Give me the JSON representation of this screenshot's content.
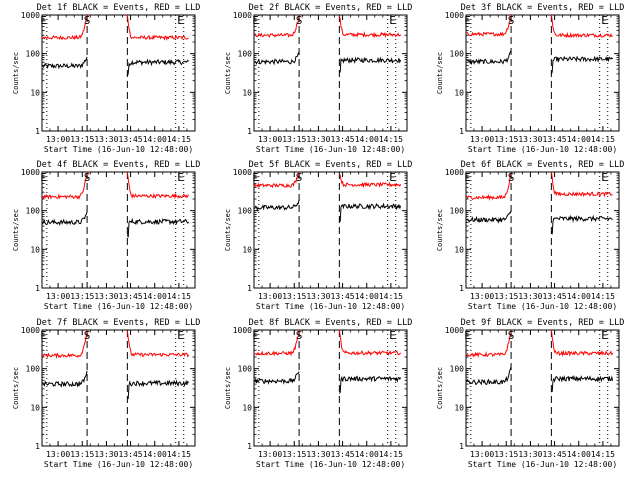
{
  "figure": {
    "background": "#ffffff",
    "axis_color": "#000000",
    "events_color": "#000000",
    "lld_color": "#ff0000"
  },
  "chart_data": [
    {
      "type": "line",
      "title": "Det 1f BLACK = Events, RED = LLD",
      "xlabel": "Start Time (16-Jun-10 12:48:00)",
      "ylabel": "Counts/sec",
      "yscale": "log",
      "ylim": [
        1,
        1000
      ],
      "xlim": [
        "12:50",
        "14:25"
      ],
      "xticks": [
        "13:00",
        "13:15",
        "13:30",
        "13:45",
        "14:00",
        "14:15"
      ],
      "yticks": [
        "1",
        "10",
        "100",
        "1000"
      ],
      "grid": false,
      "markers": [
        {
          "label": "E",
          "time": "12:51"
        },
        {
          "label": "S",
          "time": "13:18"
        },
        {
          "label": "E",
          "time": "14:16"
        }
      ],
      "dashed_lines": [
        "13:18",
        "13:43"
      ],
      "dotted_lines": [
        "12:53",
        "14:13",
        "14:18"
      ],
      "gap": [
        "13:18",
        "13:43"
      ],
      "series": [
        {
          "name": "Events",
          "color": "#000000",
          "level_before": 48,
          "rise_to": 85,
          "level_after": 60
        },
        {
          "name": "LLD",
          "color": "#ff0000",
          "level_before": 260,
          "rise_to": 1000,
          "level_after": 260
        }
      ]
    },
    {
      "type": "line",
      "title": "Det 2f BLACK = Events, RED = LLD",
      "xlabel": "Start Time (16-Jun-10 12:48:00)",
      "ylabel": "Counts/sec",
      "yscale": "log",
      "ylim": [
        1,
        1000
      ],
      "xlim": [
        "12:50",
        "14:25"
      ],
      "xticks": [
        "13:00",
        "13:15",
        "13:30",
        "13:45",
        "14:00",
        "14:15"
      ],
      "yticks": [
        "1",
        "10",
        "100",
        "1000"
      ],
      "grid": false,
      "markers": [
        {
          "label": "E",
          "time": "12:51"
        },
        {
          "label": "S",
          "time": "13:18"
        },
        {
          "label": "E",
          "time": "14:16"
        }
      ],
      "dashed_lines": [
        "13:18",
        "13:43"
      ],
      "dotted_lines": [
        "12:53",
        "14:13",
        "14:18"
      ],
      "gap": [
        "13:18",
        "13:43"
      ],
      "series": [
        {
          "name": "Events",
          "color": "#000000",
          "level_before": 62,
          "rise_to": 100,
          "level_after": 68
        },
        {
          "name": "LLD",
          "color": "#ff0000",
          "level_before": 300,
          "rise_to": 1000,
          "level_after": 310
        }
      ]
    },
    {
      "type": "line",
      "title": "Det 3f BLACK = Events, RED = LLD",
      "xlabel": "Start Time (16-Jun-10 12:48:00)",
      "ylabel": "Counts/sec",
      "yscale": "log",
      "ylim": [
        1,
        1000
      ],
      "xlim": [
        "12:50",
        "14:25"
      ],
      "xticks": [
        "13:00",
        "13:15",
        "13:30",
        "13:45",
        "14:00",
        "14:15"
      ],
      "yticks": [
        "1",
        "10",
        "100",
        "1000"
      ],
      "grid": false,
      "markers": [
        {
          "label": "E",
          "time": "12:51"
        },
        {
          "label": "S",
          "time": "13:18"
        },
        {
          "label": "E",
          "time": "14:16"
        }
      ],
      "dashed_lines": [
        "13:18",
        "13:43"
      ],
      "dotted_lines": [
        "12:53",
        "14:13",
        "14:18"
      ],
      "gap": [
        "13:18",
        "13:43"
      ],
      "series": [
        {
          "name": "Events",
          "color": "#000000",
          "level_before": 62,
          "rise_to": 110,
          "level_after": 72
        },
        {
          "name": "LLD",
          "color": "#ff0000",
          "level_before": 320,
          "rise_to": 1000,
          "level_after": 300
        }
      ]
    },
    {
      "type": "line",
      "title": "Det 4f BLACK = Events, RED = LLD",
      "xlabel": "Start Time (16-Jun-10 12:48:00)",
      "ylabel": "Counts/sec",
      "yscale": "log",
      "ylim": [
        1,
        1000
      ],
      "xlim": [
        "12:50",
        "14:25"
      ],
      "xticks": [
        "13:00",
        "13:15",
        "13:30",
        "13:45",
        "14:00",
        "14:15"
      ],
      "yticks": [
        "1",
        "10",
        "100",
        "1000"
      ],
      "grid": false,
      "markers": [
        {
          "label": "E",
          "time": "12:51"
        },
        {
          "label": "S",
          "time": "13:18"
        },
        {
          "label": "E",
          "time": "14:16"
        }
      ],
      "dashed_lines": [
        "13:18",
        "13:43"
      ],
      "dotted_lines": [
        "12:53",
        "14:13",
        "14:18"
      ],
      "gap": [
        "13:18",
        "13:43"
      ],
      "series": [
        {
          "name": "Events",
          "color": "#000000",
          "level_before": 50,
          "rise_to": 90,
          "level_after": 52
        },
        {
          "name": "LLD",
          "color": "#ff0000",
          "level_before": 230,
          "rise_to": 1000,
          "level_after": 240
        }
      ]
    },
    {
      "type": "line",
      "title": "Det 5f BLACK = Events, RED = LLD",
      "xlabel": "Start Time (16-Jun-10 12:48:00)",
      "ylabel": "Counts/sec",
      "yscale": "log",
      "ylim": [
        1,
        1000
      ],
      "xlim": [
        "12:50",
        "14:25"
      ],
      "xticks": [
        "13:00",
        "13:15",
        "13:30",
        "13:45",
        "14:00",
        "14:15"
      ],
      "yticks": [
        "1",
        "10",
        "100",
        "1000"
      ],
      "grid": false,
      "markers": [
        {
          "label": "E",
          "time": "12:51"
        },
        {
          "label": "S",
          "time": "13:18"
        },
        {
          "label": "E",
          "time": "14:16"
        }
      ],
      "dashed_lines": [
        "13:18",
        "13:43"
      ],
      "dotted_lines": [
        "12:53",
        "14:13",
        "14:18"
      ],
      "gap": [
        "13:18",
        "13:43"
      ],
      "series": [
        {
          "name": "Events",
          "color": "#000000",
          "level_before": 120,
          "rise_to": 180,
          "level_after": 130
        },
        {
          "name": "LLD",
          "color": "#ff0000",
          "level_before": 450,
          "rise_to": 1000,
          "level_after": 470
        }
      ]
    },
    {
      "type": "line",
      "title": "Det 6f BLACK = Events, RED = LLD",
      "xlabel": "Start Time (16-Jun-10 12:48:00)",
      "ylabel": "Counts/sec",
      "yscale": "log",
      "ylim": [
        1,
        1000
      ],
      "xlim": [
        "12:50",
        "14:25"
      ],
      "xticks": [
        "13:00",
        "13:15",
        "13:30",
        "13:45",
        "14:00",
        "14:15"
      ],
      "yticks": [
        "1",
        "10",
        "100",
        "1000"
      ],
      "grid": false,
      "markers": [
        {
          "label": "E",
          "time": "12:51"
        },
        {
          "label": "S",
          "time": "13:18"
        },
        {
          "label": "E",
          "time": "14:16"
        }
      ],
      "dashed_lines": [
        "13:18",
        "13:43"
      ],
      "dotted_lines": [
        "12:53",
        "14:13",
        "14:18"
      ],
      "gap": [
        "13:18",
        "13:43"
      ],
      "series": [
        {
          "name": "Events",
          "color": "#000000",
          "level_before": 58,
          "rise_to": 100,
          "level_after": 62
        },
        {
          "name": "LLD",
          "color": "#ff0000",
          "level_before": 220,
          "rise_to": 1000,
          "level_after": 270
        }
      ]
    },
    {
      "type": "line",
      "title": "Det 7f BLACK = Events, RED = LLD",
      "xlabel": "Start Time (16-Jun-10 12:48:00)",
      "ylabel": "Counts/sec",
      "yscale": "log",
      "ylim": [
        1,
        1000
      ],
      "xlim": [
        "12:50",
        "14:25"
      ],
      "xticks": [
        "13:00",
        "13:15",
        "13:30",
        "13:45",
        "14:00",
        "14:15"
      ],
      "yticks": [
        "1",
        "10",
        "100",
        "1000"
      ],
      "grid": false,
      "markers": [
        {
          "label": "E",
          "time": "12:51"
        },
        {
          "label": "S",
          "time": "13:18"
        },
        {
          "label": "E",
          "time": "14:16"
        }
      ],
      "dashed_lines": [
        "13:18",
        "13:43"
      ],
      "dotted_lines": [
        "12:53",
        "14:13",
        "14:18"
      ],
      "gap": [
        "13:18",
        "13:43"
      ],
      "series": [
        {
          "name": "Events",
          "color": "#000000",
          "level_before": 40,
          "rise_to": 80,
          "level_after": 42
        },
        {
          "name": "LLD",
          "color": "#ff0000",
          "level_before": 220,
          "rise_to": 1000,
          "level_after": 230
        }
      ]
    },
    {
      "type": "line",
      "title": "Det 8f BLACK = Events, RED = LLD",
      "xlabel": "Start Time (16-Jun-10 12:48:00)",
      "ylabel": "Counts/sec",
      "yscale": "log",
      "ylim": [
        1,
        1000
      ],
      "xlim": [
        "12:50",
        "14:25"
      ],
      "xticks": [
        "13:00",
        "13:15",
        "13:30",
        "13:45",
        "14:00",
        "14:15"
      ],
      "yticks": [
        "1",
        "10",
        "100",
        "1000"
      ],
      "grid": false,
      "markers": [
        {
          "label": "E",
          "time": "12:51"
        },
        {
          "label": "S",
          "time": "13:18"
        },
        {
          "label": "E",
          "time": "14:16"
        }
      ],
      "dashed_lines": [
        "13:18",
        "13:43"
      ],
      "dotted_lines": [
        "12:53",
        "14:13",
        "14:18"
      ],
      "gap": [
        "13:18",
        "13:43"
      ],
      "series": [
        {
          "name": "Events",
          "color": "#000000",
          "level_before": 48,
          "rise_to": 90,
          "level_after": 55
        },
        {
          "name": "LLD",
          "color": "#ff0000",
          "level_before": 250,
          "rise_to": 1000,
          "level_after": 255
        }
      ]
    },
    {
      "type": "line",
      "title": "Det 9f BLACK = Events, RED = LLD",
      "xlabel": "Start Time (16-Jun-10 12:48:00)",
      "ylabel": "Counts/sec",
      "yscale": "log",
      "ylim": [
        1,
        1000
      ],
      "xlim": [
        "12:50",
        "14:25"
      ],
      "xticks": [
        "13:00",
        "13:15",
        "13:30",
        "13:45",
        "14:00",
        "14:15"
      ],
      "yticks": [
        "1",
        "10",
        "100",
        "1000"
      ],
      "grid": false,
      "markers": [
        {
          "label": "E",
          "time": "12:51"
        },
        {
          "label": "S",
          "time": "13:18"
        },
        {
          "label": "E",
          "time": "14:16"
        }
      ],
      "dashed_lines": [
        "13:18",
        "13:43"
      ],
      "dotted_lines": [
        "12:53",
        "14:13",
        "14:18"
      ],
      "gap": [
        "13:18",
        "13:43"
      ],
      "series": [
        {
          "name": "Events",
          "color": "#000000",
          "level_before": 45,
          "rise_to": 100,
          "level_after": 55
        },
        {
          "name": "LLD",
          "color": "#ff0000",
          "level_before": 230,
          "rise_to": 1000,
          "level_after": 250
        }
      ]
    }
  ]
}
